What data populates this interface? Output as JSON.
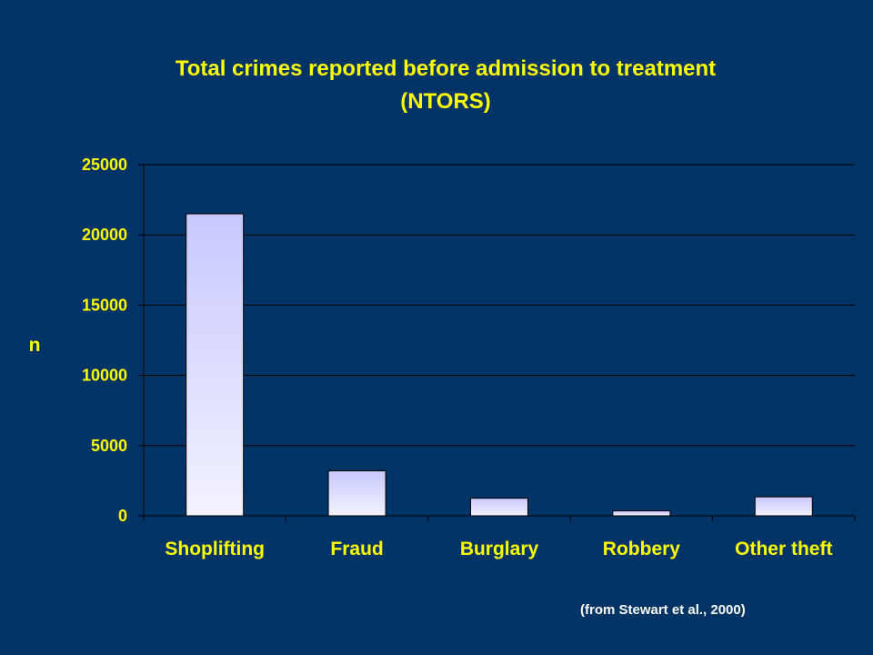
{
  "slide": {
    "title_line1": "Total crimes reported before admission to treatment",
    "title_line2": "(NTORS)",
    "source": "(from Stewart et al., 2000)"
  },
  "colors": {
    "background": "#003366",
    "title": "#FFFF00",
    "axis_text": "#FFFF00",
    "bar_top": "#C8C8FF",
    "bar_bottom": "#F2F2FF",
    "gridline": "#000000"
  },
  "chart_data": {
    "type": "bar",
    "categories": [
      "Shoplifting",
      "Fraud",
      "Burglary",
      "Robbery",
      "Other theft"
    ],
    "values": [
      21500,
      3200,
      1250,
      350,
      1350
    ],
    "yticks": [
      0,
      5000,
      10000,
      15000,
      20000,
      25000
    ],
    "ylim": [
      0,
      25000
    ],
    "ylabel": "n",
    "xlabel": "",
    "grid": true,
    "legend": "none"
  }
}
